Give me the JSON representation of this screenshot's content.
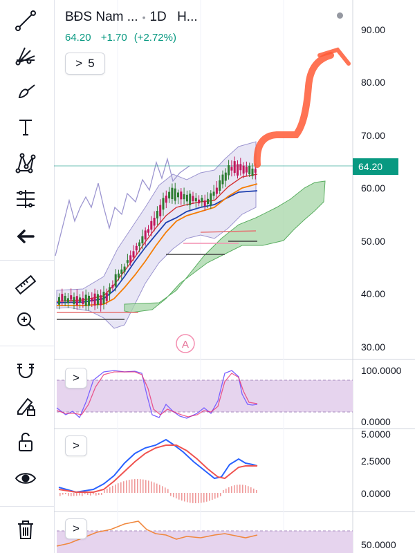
{
  "symbol": {
    "name": "BĐS Nam ...",
    "interval": "1D",
    "exchange": "H..."
  },
  "quote": {
    "last": "64.20",
    "change": "+1.70",
    "change_pct": "(+2.72%)"
  },
  "indicators_toggle": {
    "count": "5"
  },
  "price_label": "64.20",
  "main_axis": [
    "90.00",
    "80.00",
    "70.00",
    "60.00",
    "50.00",
    "40.00",
    "30.00"
  ],
  "stoch_axis": [
    "100.0000",
    "0.0000"
  ],
  "macd_axis": [
    "5.0000",
    "2.5000",
    "0.0000"
  ],
  "rsi_axis": [
    "50.0000"
  ],
  "alert_marker": "A",
  "colors": {
    "up": "#089981",
    "candle_down": "#c2185b",
    "candle_up": "#2e7d32",
    "bb_fill": "#e8e6f5",
    "cloud": "#a5d6a7",
    "accent": "#ff5a36",
    "osc_band": "#e6d4ee"
  },
  "toolbar": [
    "line-tool-icon",
    "fib-fan-icon",
    "brush-icon",
    "text-icon",
    "pattern-icon",
    "measure-lines-icon",
    "back-arrow-icon",
    "ruler-icon",
    "zoom-in-icon",
    "magnet-icon",
    "lock-pencil-icon",
    "unlock-icon",
    "eye-icon",
    "trash-icon"
  ]
}
